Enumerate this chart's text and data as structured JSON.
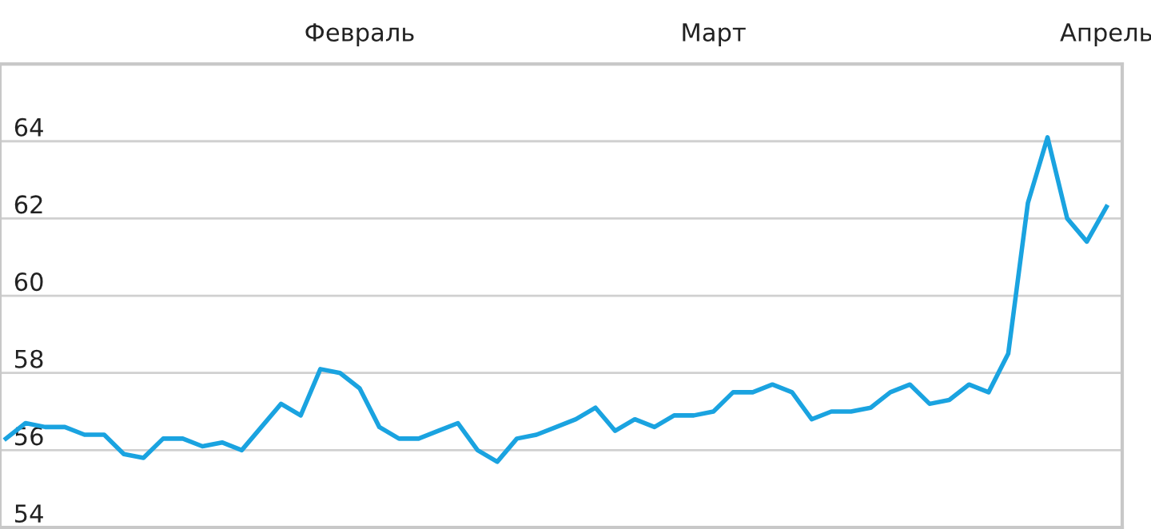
{
  "chart_data": {
    "type": "line",
    "categories": [
      null,
      null,
      null,
      null,
      null,
      null,
      null,
      null,
      null,
      null,
      null,
      null,
      null,
      null,
      null,
      null,
      null,
      null,
      "Февраль",
      null,
      null,
      null,
      null,
      null,
      null,
      null,
      null,
      null,
      null,
      null,
      null,
      null,
      null,
      null,
      null,
      null,
      "Март",
      null,
      null,
      null,
      null,
      null,
      null,
      null,
      null,
      null,
      null,
      null,
      null,
      null,
      null,
      null,
      null,
      null,
      null,
      null,
      "Апрель"
    ],
    "series": [
      {
        "color": "#1aa3e0",
        "values": [
          56.3,
          56.7,
          56.6,
          56.6,
          56.4,
          56.4,
          55.9,
          55.8,
          56.3,
          56.3,
          56.1,
          56.2,
          56.0,
          56.6,
          57.2,
          56.9,
          58.1,
          58.0,
          57.6,
          56.6,
          56.3,
          56.3,
          56.5,
          56.7,
          56.0,
          55.7,
          56.3,
          56.4,
          56.6,
          56.8,
          57.1,
          56.5,
          56.8,
          56.6,
          56.9,
          56.9,
          57.0,
          57.5,
          57.5,
          57.7,
          57.5,
          56.8,
          57.0,
          57.0,
          57.1,
          57.5,
          57.7,
          57.2,
          57.3,
          57.7,
          57.5,
          58.5,
          62.4,
          64.1,
          62.0,
          61.4,
          62.3
        ]
      }
    ],
    "ylim": [
      54,
      66
    ],
    "yticks": [
      54,
      56,
      58,
      60,
      62,
      64
    ],
    "grid": "y"
  }
}
